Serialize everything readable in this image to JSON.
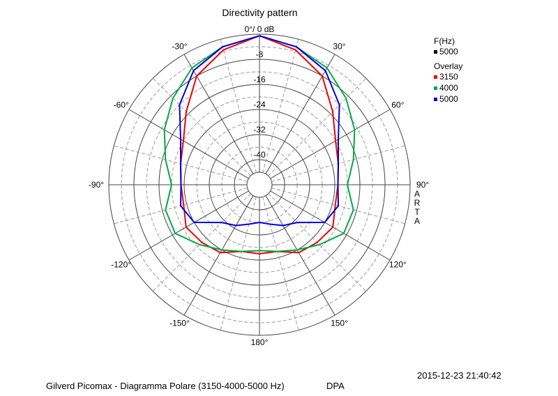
{
  "chart_data": {
    "type": "polar-line",
    "title": "Directivity pattern",
    "radial_unit": "dB",
    "radial_range": [
      -48,
      0
    ],
    "radial_ticks": [
      {
        "value": 0,
        "label": "0°/ 0 dB"
      },
      {
        "value": -8,
        "label": "-8"
      },
      {
        "value": -16,
        "label": "-16"
      },
      {
        "value": -24,
        "label": "-24"
      },
      {
        "value": -32,
        "label": "-32"
      },
      {
        "value": -40,
        "label": "-40"
      }
    ],
    "angle_labels": [
      {
        "angle": 30,
        "label": "30°"
      },
      {
        "angle": 60,
        "label": "60°"
      },
      {
        "angle": 90,
        "label": "90°"
      },
      {
        "angle": 120,
        "label": "120°"
      },
      {
        "angle": 150,
        "label": "150°"
      },
      {
        "angle": 180,
        "label": "180°"
      },
      {
        "angle": -150,
        "label": "-150°"
      },
      {
        "angle": -120,
        "label": "-120°"
      },
      {
        "angle": -90,
        "label": "-90°"
      },
      {
        "angle": -60,
        "label": "-60°"
      },
      {
        "angle": -30,
        "label": "-30°"
      }
    ],
    "grid": true,
    "angles_deg": [
      0,
      15,
      30,
      45,
      60,
      75,
      90,
      105,
      120,
      135,
      150,
      165,
      180,
      195,
      210,
      225,
      240,
      255,
      270,
      285,
      300,
      315,
      330,
      345
    ],
    "series": [
      {
        "name": "3150",
        "color": "#ee0000",
        "values": [
          -0.5,
          -3.5,
          -8,
          -15,
          -20,
          -22,
          -23,
          -23,
          -21,
          -22,
          -23,
          -26,
          -26,
          -26,
          -23,
          -22,
          -21,
          -23,
          -23,
          -22,
          -20,
          -15,
          -8,
          -3.5
        ]
      },
      {
        "name": "4000",
        "color": "#00aa44",
        "values": [
          -0.5,
          -2.5,
          -5,
          -9,
          -13,
          -17,
          -20,
          -17,
          -17,
          -21,
          -24,
          -26,
          -27,
          -26,
          -24,
          -21,
          -17,
          -17,
          -20,
          -17,
          -13,
          -9,
          -5,
          -2.5
        ]
      },
      {
        "name": "5000",
        "color": "#0000dd",
        "values": [
          -0.5,
          -2.5,
          -6,
          -12,
          -19,
          -22,
          -23,
          -22,
          -24,
          -31,
          -33,
          -35,
          -36,
          -35,
          -33,
          -31,
          -24,
          -22,
          -23,
          -22,
          -19,
          -12,
          -6,
          -2.5
        ]
      }
    ]
  },
  "legend": {
    "fhz_title": "F(Hz)",
    "fhz_value": "5000",
    "fhz_color": "#000000",
    "overlay_title": "Overlay",
    "items": [
      {
        "label": "3150",
        "color": "#ee0000"
      },
      {
        "label": "4000",
        "color": "#00aa44"
      },
      {
        "label": "5000",
        "color": "#0000dd"
      }
    ]
  },
  "side_label": "ARTA",
  "footer": {
    "timestamp": "2015-12-23  21:40:42",
    "caption": "Gilverd Picomax - Diagramma Polare (3150-4000-5000 Hz)",
    "tag": "DPA"
  }
}
